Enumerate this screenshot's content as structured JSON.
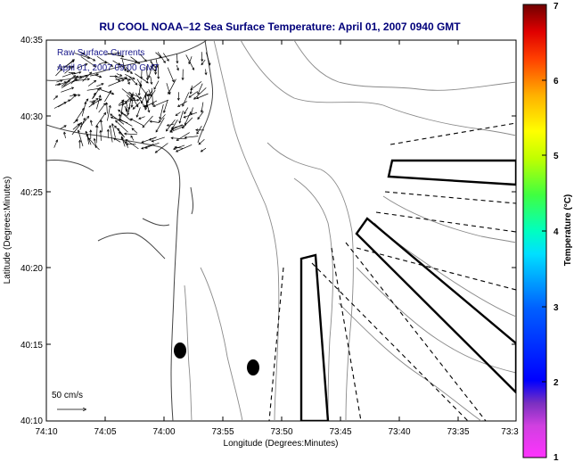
{
  "title": "RU COOL  NOAA–12  Sea Surface Temperature:  April 01, 2007 0940 GMT",
  "legend": {
    "line1": "Raw Surface Currents",
    "line2": "April 01, 2007 09:00 GMT"
  },
  "axes": {
    "xlabel": "Longitude (Degrees:Minutes)",
    "ylabel": "Latitude (Degrees:Minutes)",
    "xticks": [
      "74:10",
      "74:05",
      "74:00",
      "73:55",
      "73:50",
      "73:45",
      "73:40",
      "73:35",
      "73:3"
    ],
    "yticks": [
      "40:35",
      "40:30",
      "40:25",
      "40:20",
      "40:15",
      "40:10"
    ]
  },
  "scale_arrow": {
    "label": "50 cm/s"
  },
  "colorbar": {
    "label": "Temperature (°C)",
    "ticks": [
      "7",
      "6",
      "5",
      "4",
      "3",
      "2",
      "1"
    ],
    "range": [
      1,
      7
    ]
  },
  "colors": {
    "title": "#00007a",
    "legend_text": "#1a1a8c",
    "contour": "#8a8a8a",
    "outline": "#000000"
  }
}
